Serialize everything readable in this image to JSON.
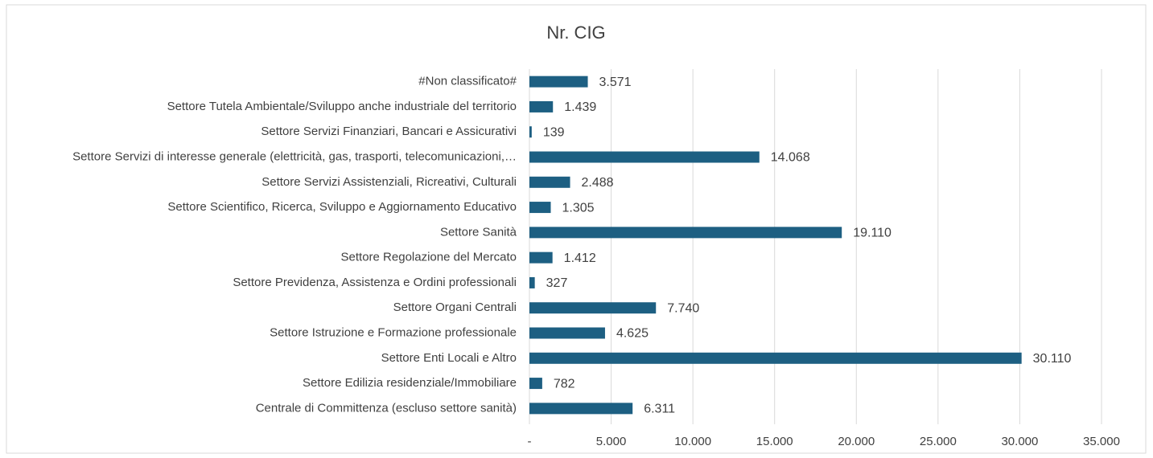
{
  "chart_data": {
    "type": "bar",
    "orientation": "horizontal",
    "title": "Nr. CIG",
    "categories": [
      "#Non classificato#",
      "Settore Tutela Ambientale/Sviluppo anche industriale del territorio",
      "Settore Servizi Finanziari, Bancari e Assicurativi",
      "Settore Servizi di interesse generale (elettricità, gas, trasporti, telecomunicazioni,…",
      "Settore Servizi Assistenziali, Ricreativi, Culturali",
      "Settore Scientifico, Ricerca, Sviluppo e Aggiornamento Educativo",
      "Settore Sanità",
      "Settore Regolazione del Mercato",
      "Settore Previdenza, Assistenza e Ordini professionali",
      "Settore Organi Centrali",
      "Settore Istruzione e Formazione professionale",
      "Settore Enti Locali e Altro",
      "Settore Edilizia residenziale/Immobiliare",
      "Centrale di Committenza (escluso settore sanità)"
    ],
    "values": [
      3571,
      1439,
      139,
      14068,
      2488,
      1305,
      19110,
      1412,
      327,
      7740,
      4625,
      30110,
      782,
      6311
    ],
    "value_labels": [
      "3.571",
      "1.439",
      "139",
      "14.068",
      "2.488",
      "1.305",
      "19.110",
      "1.412",
      "327",
      "7.740",
      "4.625",
      "30.110",
      "782",
      "6.311"
    ],
    "color": "#1d5f82",
    "xlim": [
      0,
      35000
    ],
    "xticks": [
      {
        "value": 0,
        "label": "-"
      },
      {
        "value": 5000,
        "label": "5.000"
      },
      {
        "value": 10000,
        "label": "10.000"
      },
      {
        "value": 15000,
        "label": "15.000"
      },
      {
        "value": 20000,
        "label": "20.000"
      },
      {
        "value": 25000,
        "label": "25.000"
      },
      {
        "value": 30000,
        "label": "30.000"
      },
      {
        "value": 35000,
        "label": "35.000"
      }
    ],
    "grid": true
  }
}
